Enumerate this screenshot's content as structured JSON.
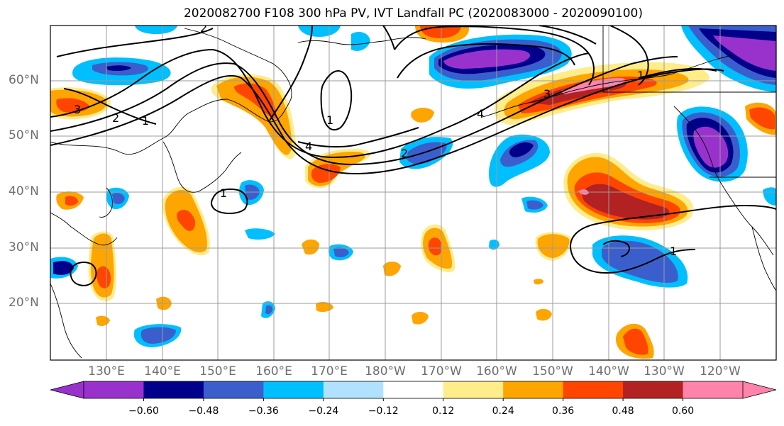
{
  "title": "2020082700 F108 300 hPa PV, IVT Landfall PC (2020083000 - 2020090100)",
  "lat_labels": [
    "60°N",
    "50°N",
    "40°N",
    "30°N",
    "20°N"
  ],
  "lon_labels": [
    "130°E",
    "140°E",
    "150°E",
    "160°E",
    "170°E",
    "180°W",
    "170°W",
    "160°W",
    "150°W",
    "140°W",
    "130°W",
    "120°W"
  ],
  "contour_labels": [
    "3",
    "2",
    "1",
    "2",
    "1",
    "4",
    "2",
    "4",
    "3",
    "1",
    "1",
    "1"
  ],
  "colorbar": {
    "colors": [
      "#9932CC",
      "#00008B",
      "#3A5FCD",
      "#00BFFF",
      "#B0E2FF",
      "#FFFFFF",
      "#FFEC8B",
      "#FFA500",
      "#FF4500",
      "#B22222",
      "#FF83AA"
    ],
    "tick_labels": [
      "−0.60",
      "−0.48",
      "−0.36",
      "−0.24",
      "−0.12",
      "0.12",
      "0.24",
      "0.36",
      "0.48",
      "0.60"
    ],
    "values": [
      -0.6,
      -0.48,
      -0.36,
      -0.24,
      -0.12,
      0.12,
      0.24,
      0.36,
      0.48,
      0.6
    ]
  }
}
